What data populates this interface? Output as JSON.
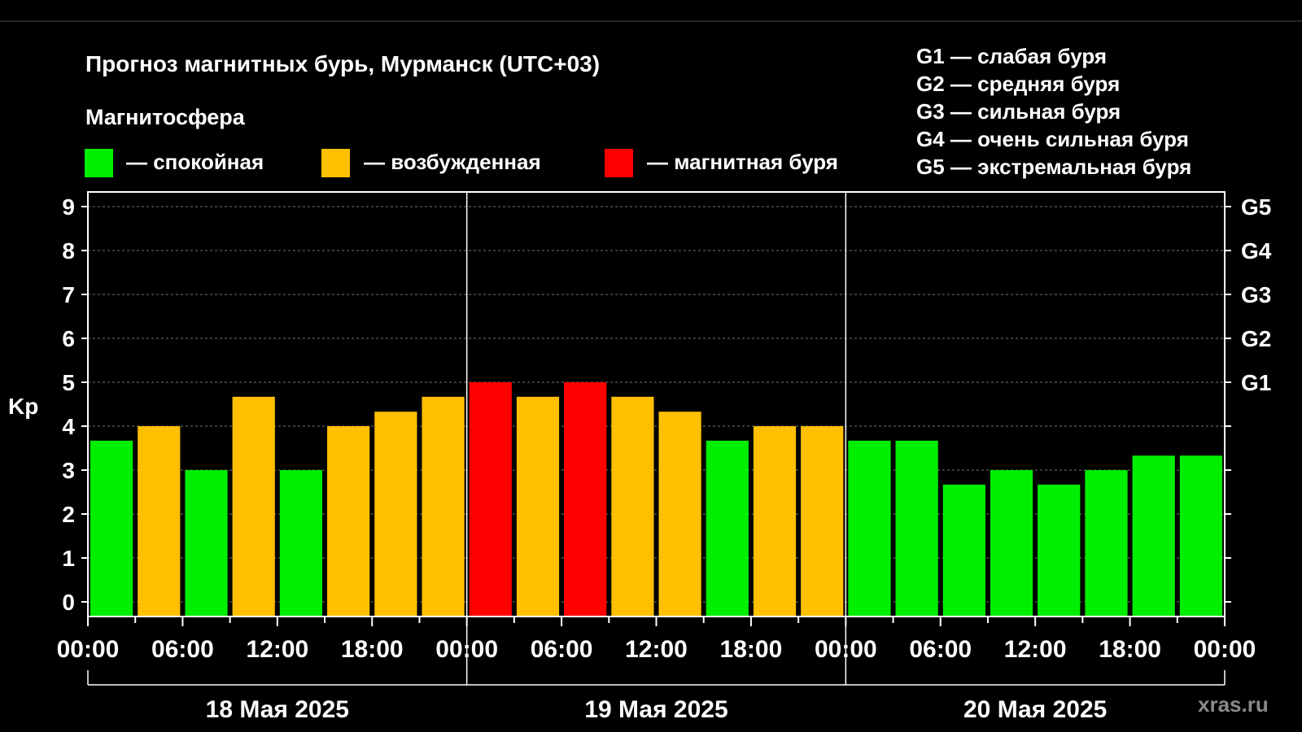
{
  "colors": {
    "background": "#000000",
    "quiet": "#00ee00",
    "active": "#ffc000",
    "storm": "#ff0000",
    "text": "#ffffff",
    "grid": "#777777"
  },
  "header": {
    "title": "Прогноз магнитных бурь, Мурманск (UTC+03)",
    "subtitle": "Магнитосфера"
  },
  "legend": [
    {
      "label": "— спокойная",
      "color": "#00ee00"
    },
    {
      "label": "— возбужденная",
      "color": "#ffc000"
    },
    {
      "label": "— магнитная буря",
      "color": "#ff0000"
    }
  ],
  "g_scale": [
    "G1 — слабая буря",
    "G2 — средняя буря",
    "G3 — сильная буря",
    "G4 — очень сильная буря",
    "G5 — экстремальная буря"
  ],
  "watermark": "xras.ru",
  "chart_data": {
    "type": "bar",
    "ylabel": "Kp",
    "ylim": [
      0,
      9
    ],
    "yticks": [
      "0",
      "1",
      "2",
      "3",
      "4",
      "5",
      "6",
      "7",
      "8",
      "9"
    ],
    "right_axis_labels": [
      {
        "label": "G1",
        "value": 5
      },
      {
        "label": "G2",
        "value": 6
      },
      {
        "label": "G3",
        "value": 7
      },
      {
        "label": "G4",
        "value": 8
      },
      {
        "label": "G5",
        "value": 9
      }
    ],
    "grid": true,
    "x_tick_labels": [
      "00:00",
      "06:00",
      "12:00",
      "18:00",
      "00:00",
      "06:00",
      "12:00",
      "18:00",
      "00:00",
      "06:00",
      "12:00",
      "18:00",
      "00:00"
    ],
    "days": [
      "18 Мая 2025",
      "19 Мая 2025",
      "20 Мая 2025"
    ],
    "interval_hours": 3,
    "values": [
      3.67,
      4.0,
      3.0,
      4.67,
      3.0,
      4.0,
      4.33,
      4.67,
      5.0,
      4.67,
      5.0,
      4.67,
      4.33,
      3.67,
      4.0,
      4.0,
      3.67,
      3.67,
      2.67,
      3.0,
      2.67,
      3.0,
      3.33,
      3.33
    ],
    "levels": [
      "quiet",
      "active",
      "quiet",
      "active",
      "quiet",
      "active",
      "active",
      "active",
      "storm",
      "active",
      "storm",
      "active",
      "active",
      "quiet",
      "active",
      "active",
      "quiet",
      "quiet",
      "quiet",
      "quiet",
      "quiet",
      "quiet",
      "quiet",
      "quiet"
    ]
  }
}
